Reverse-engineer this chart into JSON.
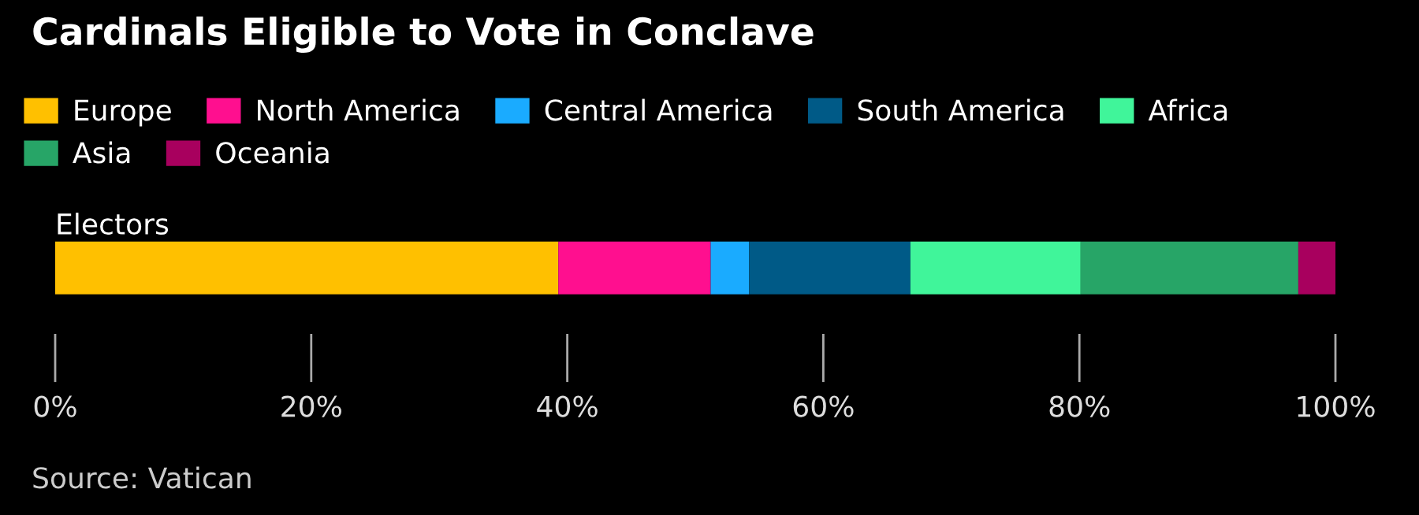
{
  "chart_data": {
    "type": "bar",
    "title": "Cardinals Eligible to Vote in Conclave",
    "orientation": "horizontal",
    "stacked": true,
    "categories": [
      "Electors"
    ],
    "series": [
      {
        "name": "Europe",
        "color": "#ffc000",
        "values": [
          39.3
        ]
      },
      {
        "name": "North America",
        "color": "#ff0f8f",
        "values": [
          11.9
        ]
      },
      {
        "name": "Central America",
        "color": "#1aabff",
        "values": [
          3.0
        ]
      },
      {
        "name": "South America",
        "color": "#005a87",
        "values": [
          12.6
        ]
      },
      {
        "name": "Africa",
        "color": "#40f59a",
        "values": [
          13.3
        ]
      },
      {
        "name": "Asia",
        "color": "#27a567",
        "values": [
          17.0
        ]
      },
      {
        "name": "Oceania",
        "color": "#a8005e",
        "values": [
          2.9
        ]
      }
    ],
    "xlim": [
      0,
      100
    ],
    "xticks": [
      {
        "value": 0,
        "label": "0%"
      },
      {
        "value": 20,
        "label": "20%"
      },
      {
        "value": 40,
        "label": "40%"
      },
      {
        "value": 60,
        "label": "60%"
      },
      {
        "value": 80,
        "label": "80%"
      },
      {
        "value": 100,
        "label": "100%"
      }
    ],
    "grid": false,
    "legend": "top left",
    "annotations": [
      "Source: Vatican"
    ]
  }
}
